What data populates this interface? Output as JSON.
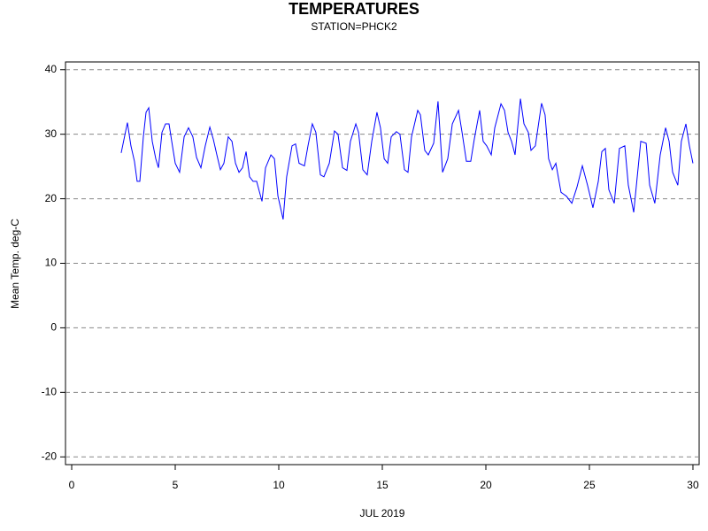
{
  "chart_data": {
    "type": "line",
    "title": "TEMPERATURES",
    "subtitle": "STATION=PHCK2",
    "x_label": "JUL 2019",
    "y_label": "Mean Temp. deg-C",
    "xlim": [
      -0.3,
      30.3
    ],
    "xticks": [
      0,
      5,
      10,
      15,
      20,
      25,
      30
    ],
    "ylim": [
      -21.2,
      41.2
    ],
    "yticks": [
      -20,
      -10,
      0,
      10,
      20,
      30,
      40
    ],
    "grid": true,
    "series": [
      {
        "color": "#0000ff",
        "x": [
          2.39,
          2.69,
          2.86,
          3.03,
          3.16,
          3.29,
          3.46,
          3.59,
          3.72,
          3.89,
          4.06,
          4.19,
          4.36,
          4.53,
          4.7,
          4.83,
          5.0,
          5.21,
          5.43,
          5.64,
          5.85,
          6.03,
          6.24,
          6.45,
          6.67,
          6.84,
          7.01,
          7.18,
          7.35,
          7.56,
          7.74,
          7.91,
          8.08,
          8.25,
          8.42,
          8.59,
          8.76,
          8.93,
          9.19,
          9.36,
          9.62,
          9.79,
          9.96,
          10.21,
          10.38,
          10.64,
          10.81,
          10.98,
          11.24,
          11.41,
          11.62,
          11.79,
          12.01,
          12.18,
          12.44,
          12.69,
          12.86,
          13.08,
          13.29,
          13.46,
          13.72,
          13.85,
          14.06,
          14.27,
          14.49,
          14.74,
          14.91,
          15.09,
          15.26,
          15.43,
          15.68,
          15.85,
          16.07,
          16.24,
          16.41,
          16.71,
          16.84,
          17.05,
          17.22,
          17.48,
          17.69,
          17.91,
          18.16,
          18.38,
          18.68,
          18.85,
          19.06,
          19.27,
          19.44,
          19.7,
          19.87,
          20.04,
          20.26,
          20.43,
          20.73,
          20.9,
          21.07,
          21.24,
          21.41,
          21.67,
          21.84,
          22.05,
          22.18,
          22.39,
          22.69,
          22.86,
          23.03,
          23.21,
          23.38,
          23.63,
          23.89,
          24.15,
          24.4,
          24.66,
          24.91,
          25.17,
          25.43,
          25.6,
          25.77,
          25.94,
          26.2,
          26.45,
          26.71,
          26.88,
          27.14,
          27.31,
          27.48,
          27.74,
          27.91,
          28.16,
          28.42,
          28.68,
          28.85,
          29.02,
          29.27,
          29.44,
          29.66,
          29.83,
          30.0
        ],
        "values": [
          27.1,
          31.8,
          28.2,
          25.8,
          22.7,
          22.7,
          29.6,
          33.4,
          34.1,
          28.9,
          26.2,
          24.8,
          30.3,
          31.6,
          31.6,
          28.9,
          25.5,
          24.1,
          29.6,
          31.0,
          29.6,
          26.4,
          24.8,
          28.2,
          31.1,
          29.2,
          26.8,
          24.5,
          25.5,
          29.6,
          28.9,
          25.5,
          24.1,
          24.8,
          27.3,
          23.4,
          22.7,
          22.7,
          19.6,
          24.8,
          26.8,
          26.2,
          20.4,
          16.8,
          23.4,
          28.2,
          28.5,
          25.5,
          25.1,
          28.2,
          31.6,
          30.3,
          23.7,
          23.4,
          25.5,
          30.5,
          30.0,
          24.8,
          24.4,
          28.9,
          31.6,
          30.3,
          24.5,
          23.7,
          28.9,
          33.4,
          31.0,
          26.2,
          25.5,
          29.6,
          30.4,
          30.0,
          24.5,
          24.1,
          29.6,
          33.7,
          33.0,
          27.5,
          26.8,
          28.6,
          35.1,
          24.1,
          26.2,
          31.6,
          33.7,
          30.3,
          25.8,
          25.8,
          29.2,
          33.7,
          28.9,
          28.2,
          26.8,
          31.0,
          34.7,
          33.7,
          30.3,
          28.9,
          26.8,
          35.5,
          31.6,
          30.3,
          27.5,
          28.2,
          34.8,
          33.0,
          26.2,
          24.5,
          25.5,
          21.0,
          20.4,
          19.3,
          21.8,
          25.1,
          22.1,
          18.6,
          22.7,
          27.3,
          27.8,
          21.4,
          19.3,
          27.8,
          28.2,
          22.1,
          17.9,
          23.4,
          28.9,
          28.6,
          22.1,
          19.3,
          26.8,
          31.0,
          28.9,
          24.1,
          22.1,
          28.9,
          31.6,
          28.2,
          25.5
        ]
      }
    ]
  }
}
